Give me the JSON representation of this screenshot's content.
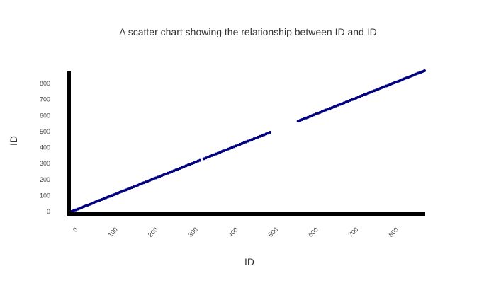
{
  "chart_data": {
    "type": "scatter",
    "title": "A scatter chart showing the relationship between ID and ID",
    "xlabel": "ID",
    "ylabel": "ID",
    "x_ticks": [
      "0",
      "100",
      "200",
      "300",
      "400",
      "500",
      "600",
      "700",
      "800"
    ],
    "y_ticks": [
      "0",
      "100",
      "200",
      "300",
      "400",
      "500",
      "600",
      "700",
      "800"
    ],
    "xlim": [
      0,
      880
    ],
    "ylim": [
      0,
      880
    ],
    "grid": false,
    "legend": "none",
    "marker_color": "#000080",
    "axis_color": "#000000",
    "series": [
      {
        "segments": [
          {
            "x_start": 0,
            "x_end": 320
          },
          {
            "x_start": 330,
            "x_end": 495
          },
          {
            "x_start": 565,
            "x_end": 880
          }
        ]
      }
    ]
  }
}
